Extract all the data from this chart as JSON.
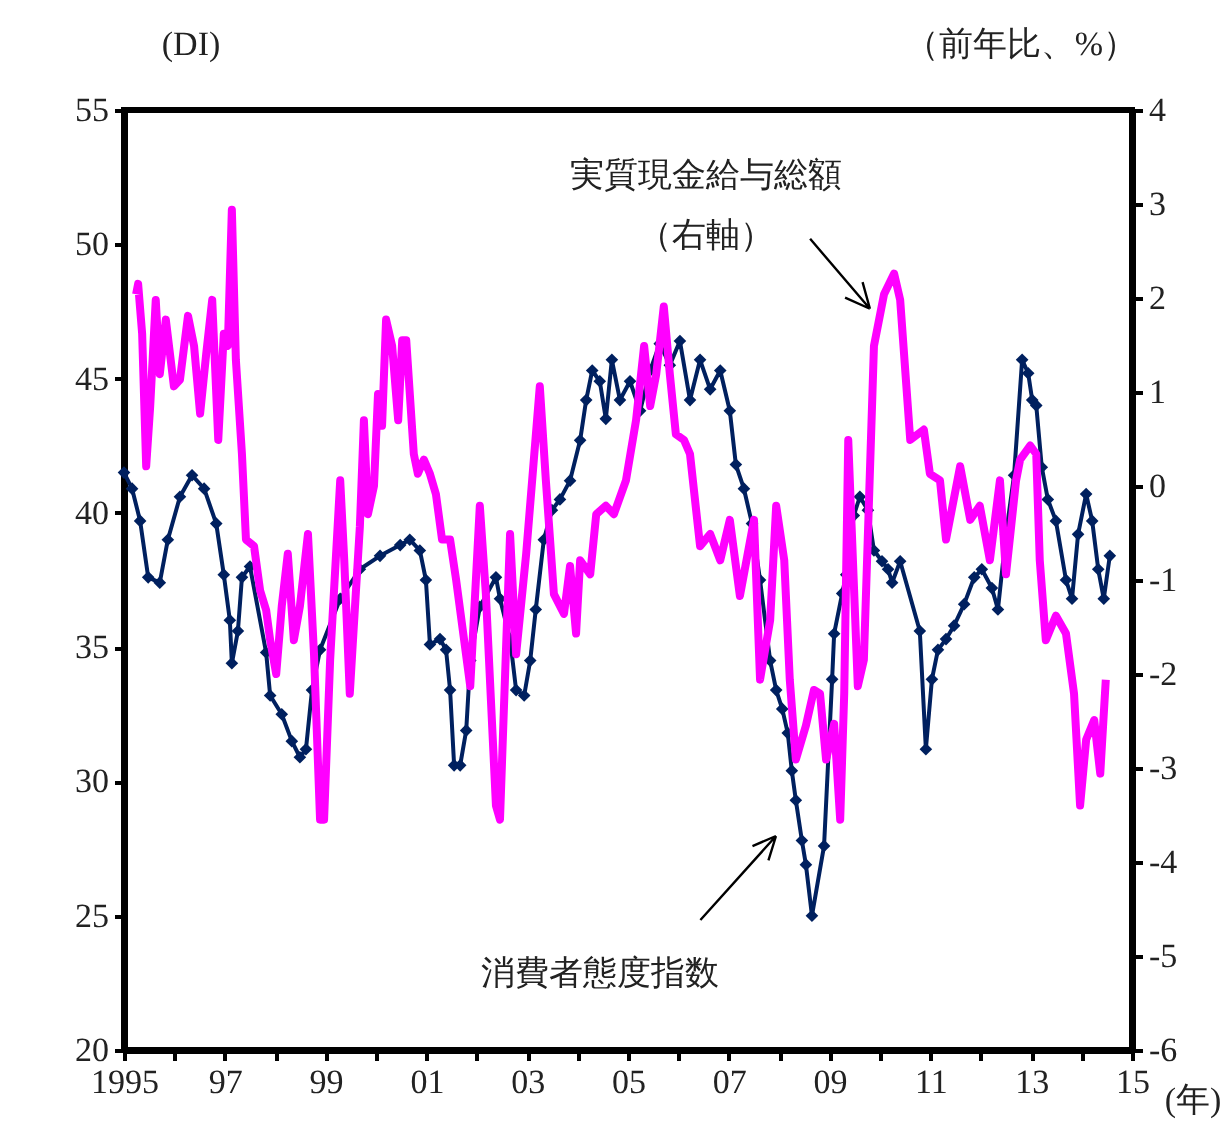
{
  "chart_data": {
    "type": "line",
    "xlabel": "(年)",
    "ylabel": "(DI)",
    "y2label": "（前年比、%）",
    "grid": false,
    "xlim": [
      1995,
      2015
    ],
    "xticks": [
      {
        "value": 1995,
        "label": "1995"
      },
      {
        "value": 1996,
        "label": null
      },
      {
        "value": 1997,
        "label": "97"
      },
      {
        "value": 1998,
        "label": null
      },
      {
        "value": 1999,
        "label": "99"
      },
      {
        "value": 2000,
        "label": null
      },
      {
        "value": 2001,
        "label": "01"
      },
      {
        "value": 2002,
        "label": null
      },
      {
        "value": 2003,
        "label": "03"
      },
      {
        "value": 2004,
        "label": null
      },
      {
        "value": 2005,
        "label": "05"
      },
      {
        "value": 2006,
        "label": null
      },
      {
        "value": 2007,
        "label": "07"
      },
      {
        "value": 2008,
        "label": null
      },
      {
        "value": 2009,
        "label": "09"
      },
      {
        "value": 2010,
        "label": null
      },
      {
        "value": 2011,
        "label": "11"
      },
      {
        "value": 2012,
        "label": null
      },
      {
        "value": 2013,
        "label": "13"
      },
      {
        "value": 2014,
        "label": null
      },
      {
        "value": 2015,
        "label": "15"
      }
    ],
    "ylim": [
      20,
      55
    ],
    "yticks": [
      20,
      25,
      30,
      35,
      40,
      45,
      50,
      55
    ],
    "y2lim": [
      -6,
      4
    ],
    "y2ticks": [
      -6,
      -5,
      -4,
      -3,
      -2,
      -1,
      0,
      1,
      2,
      3,
      4
    ],
    "series": [
      {
        "color": "#00205f",
        "marker": "diamond",
        "line_style": "solid",
        "x": [
          1995.0,
          1995.16,
          1995.32,
          1995.48,
          1995.71,
          1995.87,
          1996.11,
          1996.35,
          1996.59,
          1996.83,
          1996.98,
          1997.1,
          1997.14,
          1997.26,
          1997.34,
          1997.5,
          1997.82,
          1997.9,
          1998.13,
          1998.33,
          1998.49,
          1998.61,
          1998.73,
          1998.89,
          1999.29,
          1999.68,
          2000.08,
          2000.48,
          2000.67,
          2000.87,
          2000.99,
          2001.07,
          2001.27,
          2001.39,
          2001.47,
          2001.55,
          2001.67,
          2001.79,
          2001.87,
          2002.06,
          2002.38,
          2002.46,
          2002.66,
          2002.78,
          2002.94,
          2003.06,
          2003.17,
          2003.33,
          2003.49,
          2003.65,
          2003.85,
          2004.05,
          2004.17,
          2004.29,
          2004.44,
          2004.56,
          2004.68,
          2004.84,
          2005.04,
          2005.24,
          2005.44,
          2005.63,
          2005.83,
          2006.03,
          2006.23,
          2006.43,
          2006.63,
          2006.83,
          2007.02,
          2007.14,
          2007.3,
          2007.46,
          2007.62,
          2007.82,
          2007.94,
          2008.06,
          2008.17,
          2008.25,
          2008.33,
          2008.45,
          2008.53,
          2008.65,
          2008.89,
          2009.05,
          2009.09,
          2009.25,
          2009.33,
          2009.48,
          2009.6,
          2009.76,
          2009.88,
          2010.04,
          2010.16,
          2010.24,
          2010.4,
          2010.79,
          2010.91,
          2011.03,
          2011.15,
          2011.31,
          2011.47,
          2011.67,
          2011.87,
          2012.02,
          2012.22,
          2012.34,
          2012.5,
          2012.66,
          2012.82,
          2012.94,
          2013.02,
          2013.1,
          2013.21,
          2013.33,
          2013.49,
          2013.69,
          2013.81,
          2013.93,
          2014.09,
          2014.21,
          2014.33,
          2014.44,
          2014.56
        ],
        "values": [
          41.5,
          40.9,
          39.7,
          37.6,
          37.4,
          39.0,
          40.6,
          41.4,
          40.9,
          39.6,
          37.7,
          36.0,
          34.4,
          35.6,
          37.6,
          38.0,
          34.8,
          33.2,
          32.5,
          31.5,
          30.9,
          31.2,
          33.4,
          34.9,
          36.8,
          37.9,
          38.4,
          38.8,
          39.0,
          38.6,
          37.5,
          35.1,
          35.3,
          34.9,
          33.4,
          30.6,
          30.6,
          31.9,
          34.5,
          36.5,
          37.6,
          36.8,
          35.3,
          33.4,
          33.2,
          34.5,
          36.4,
          39.0,
          40.1,
          40.5,
          41.2,
          42.7,
          44.2,
          45.3,
          44.9,
          43.5,
          45.7,
          44.2,
          44.9,
          43.8,
          45.3,
          46.3,
          45.5,
          46.4,
          44.2,
          45.7,
          44.6,
          45.3,
          43.8,
          41.8,
          40.9,
          39.6,
          37.5,
          34.5,
          33.4,
          32.7,
          31.8,
          30.4,
          29.3,
          27.8,
          26.9,
          25.0,
          27.6,
          33.8,
          35.5,
          37.0,
          37.7,
          39.9,
          40.6,
          40.1,
          38.6,
          38.2,
          37.9,
          37.4,
          38.2,
          35.6,
          31.2,
          33.8,
          34.9,
          35.3,
          35.8,
          36.6,
          37.6,
          37.9,
          37.2,
          36.4,
          39.2,
          41.4,
          45.7,
          45.2,
          44.2,
          44.0,
          41.7,
          40.5,
          39.7,
          37.5,
          36.8,
          39.2,
          40.7,
          39.7,
          37.9,
          36.8,
          38.4
        ]
      },
      {
        "color": "#ff00ff",
        "axis": "y2",
        "marker": "none",
        "line_style": "solid",
        "x": [
          1995.24,
          1995.28,
          1995.36,
          1995.44,
          1995.52,
          1995.63,
          1995.71,
          1995.83,
          1995.99,
          1996.11,
          1996.27,
          1996.39,
          1996.51,
          1996.63,
          1996.75,
          1996.87,
          1996.98,
          1997.06,
          1997.14,
          1997.22,
          1997.34,
          1997.42,
          1997.58,
          1997.7,
          1997.82,
          1997.9,
          1998.02,
          1998.13,
          1998.25,
          1998.37,
          1998.49,
          1998.65,
          1998.77,
          1998.89,
          1998.97,
          1999.09,
          1999.29,
          1999.37,
          1999.48,
          1999.56,
          1999.68,
          1999.76,
          1999.84,
          1999.96,
          2000.04,
          2000.12,
          2000.2,
          2000.32,
          2000.44,
          2000.52,
          2000.6,
          2000.75,
          2000.83,
          2000.95,
          2001.07,
          2001.19,
          2001.31,
          2001.47,
          2001.59,
          2001.87,
          2002.06,
          2002.18,
          2002.38,
          2002.46,
          2002.66,
          2002.78,
          2002.98,
          2003.25,
          2003.37,
          2003.53,
          2003.73,
          2003.85,
          2003.97,
          2004.05,
          2004.25,
          2004.37,
          2004.56,
          2004.72,
          2004.96,
          2005.16,
          2005.32,
          2005.44,
          2005.56,
          2005.71,
          2005.83,
          2005.95,
          2006.11,
          2006.23,
          2006.43,
          2006.63,
          2006.83,
          2007.02,
          2007.22,
          2007.5,
          2007.62,
          2007.82,
          2007.94,
          2008.1,
          2008.21,
          2008.33,
          2008.53,
          2008.69,
          2008.81,
          2008.93,
          2009.09,
          2009.21,
          2009.29,
          2009.37,
          2009.56,
          2009.68,
          2009.88,
          2010.08,
          2010.28,
          2010.4,
          2010.6,
          2010.87,
          2010.99,
          2011.19,
          2011.31,
          2011.59,
          2011.79,
          2011.98,
          2012.18,
          2012.38,
          2012.5,
          2012.7,
          2012.78,
          2012.98,
          2013.1,
          2013.17,
          2013.29,
          2013.49,
          2013.69,
          2013.85,
          2013.97,
          2014.09,
          2014.25,
          2014.37,
          2014.48
        ],
        "values": [
          2.04,
          2.15,
          1.62,
          0.21,
          0.85,
          1.98,
          1.19,
          1.77,
          1.06,
          1.13,
          1.81,
          1.49,
          0.77,
          1.4,
          1.98,
          0.49,
          1.62,
          1.49,
          2.94,
          1.34,
          0.34,
          -0.57,
          -0.64,
          -1.11,
          -1.32,
          -1.64,
          -2.0,
          -1.28,
          -0.72,
          -1.64,
          -1.28,
          -0.51,
          -1.79,
          -3.55,
          -3.55,
          -1.85,
          0.06,
          -0.79,
          -2.21,
          -1.49,
          -0.43,
          0.7,
          -0.3,
          0.0,
          0.98,
          0.64,
          1.77,
          1.49,
          0.7,
          1.55,
          1.55,
          0.34,
          0.13,
          0.28,
          0.13,
          -0.09,
          -0.57,
          -0.57,
          -1.0,
          -2.13,
          -0.21,
          -1.15,
          -3.4,
          -3.55,
          -0.51,
          -1.79,
          -0.72,
          1.06,
          0.06,
          -1.15,
          -1.36,
          -0.85,
          -1.57,
          -0.79,
          -0.94,
          -0.3,
          -0.21,
          -0.3,
          0.06,
          0.7,
          1.49,
          0.85,
          1.19,
          1.91,
          1.19,
          0.55,
          0.49,
          0.34,
          -0.64,
          -0.51,
          -0.79,
          -0.36,
          -1.17,
          -0.36,
          -2.06,
          -1.43,
          -0.21,
          -0.79,
          -2.06,
          -2.91,
          -2.55,
          -2.17,
          -2.21,
          -2.91,
          -2.53,
          -3.55,
          -2.21,
          0.49,
          -2.13,
          -1.85,
          1.49,
          2.04,
          2.26,
          1.98,
          0.49,
          0.6,
          0.13,
          0.06,
          -0.57,
          0.21,
          -0.36,
          -0.21,
          -0.79,
          0.06,
          -0.94,
          0.06,
          0.28,
          0.43,
          0.34,
          -0.79,
          -1.64,
          -1.38,
          -1.57,
          -2.21,
          -3.4,
          -2.7,
          -2.49,
          -3.06,
          -2.06
        ]
      }
    ],
    "annotations": [
      "消費者態度指数",
      "実質現金給与総額",
      {
        "text": "（右軸）",
        "x": 2009.8,
        "y": 47.6
      }
    ]
  }
}
